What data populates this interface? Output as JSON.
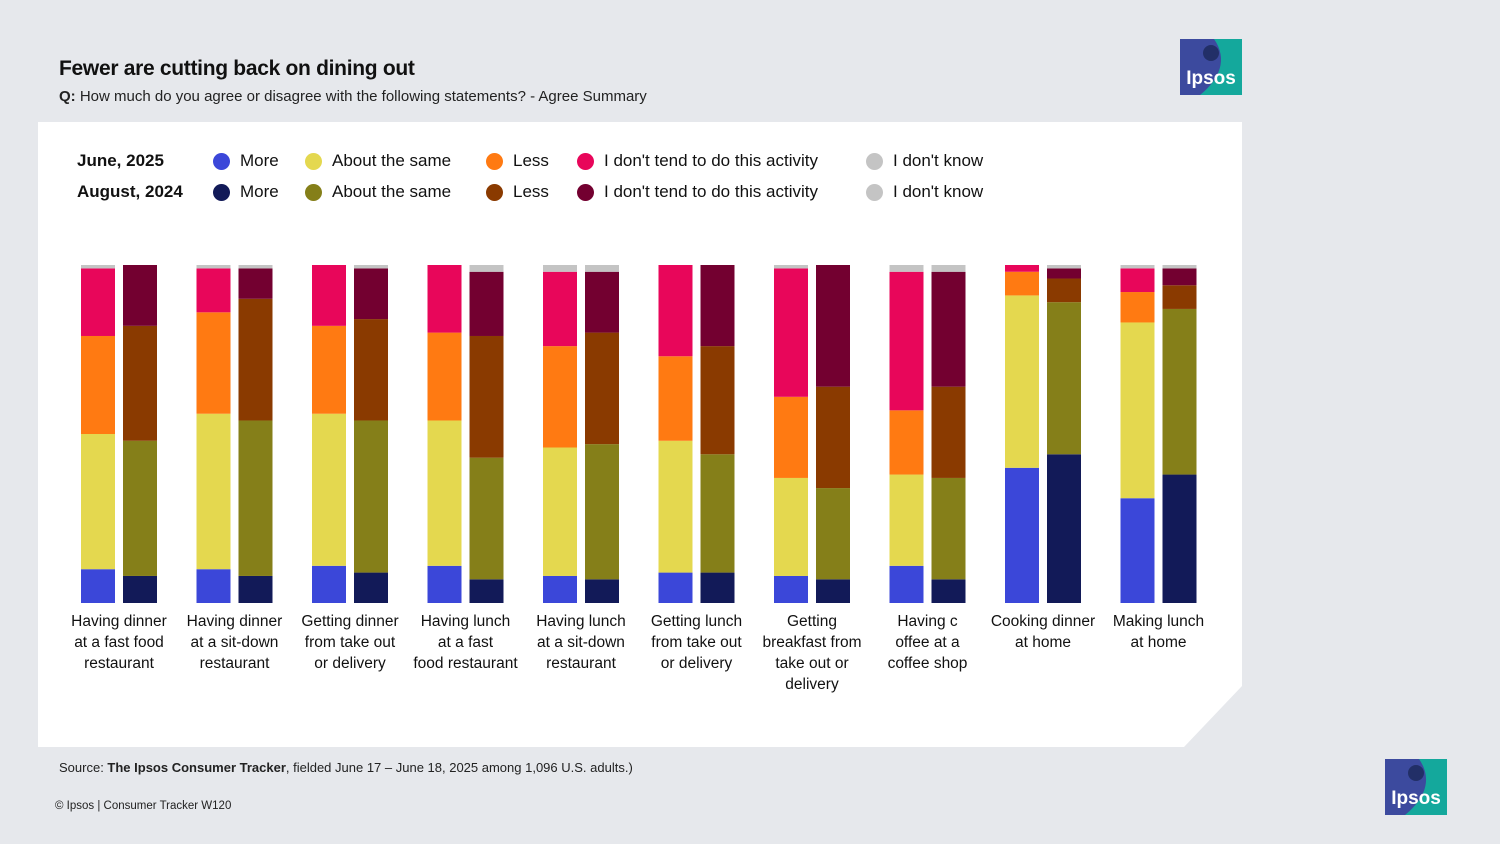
{
  "header": {
    "title": "Fewer are cutting back on dining out",
    "question_prefix": "Q:",
    "question_text": " How much do you agree or disagree with the following statements? - Agree Summary"
  },
  "logo": {
    "text": "Ipsos",
    "color_dark": "#3c4a9e",
    "color_teal": "#14a89c"
  },
  "legend": {
    "rows": [
      {
        "period": "June, 2025",
        "items": [
          {
            "label": "More",
            "color": "#3b47d9"
          },
          {
            "label": "About the same",
            "color": "#e4d84f"
          },
          {
            "label": "Less",
            "color": "#ff7a12"
          },
          {
            "label": "I don't tend to do this activity",
            "color": "#e8065a"
          },
          {
            "label": "I don't know",
            "color": "#c4c4c4"
          }
        ]
      },
      {
        "period": "August, 2024",
        "items": [
          {
            "label": "More",
            "color": "#121a58"
          },
          {
            "label": "About the same",
            "color": "#857f19"
          },
          {
            "label": "Less",
            "color": "#8a3a00"
          },
          {
            "label": "I don't tend to do this activity",
            "color": "#730030"
          },
          {
            "label": "I don't know",
            "color": "#c4c4c4"
          }
        ]
      }
    ]
  },
  "chart_data": {
    "type": "bar",
    "stacked": true,
    "normalized_to": 100,
    "categories": [
      [
        "Having dinner",
        "at a fast food",
        "restaurant"
      ],
      [
        "Having dinner",
        "at a sit-down",
        "restaurant"
      ],
      [
        "Getting dinner",
        "from take out",
        "or delivery"
      ],
      [
        "Having lunch",
        "at a fast",
        "food restaurant"
      ],
      [
        "Having lunch",
        "at a sit-down",
        "restaurant"
      ],
      [
        "Getting lunch",
        "from take out",
        "or delivery"
      ],
      [
        "Getting",
        "breakfast from",
        "take out or",
        "delivery"
      ],
      [
        "Having c",
        "offee at a",
        "coffee shop"
      ],
      [
        "Cooking dinner",
        "at home"
      ],
      [
        "Making lunch",
        "at home"
      ]
    ],
    "stack_order": [
      "More",
      "About the same",
      "Less",
      "I don't tend to do this activity",
      "I don't know"
    ],
    "series": [
      {
        "name": "June, 2025",
        "colors": [
          "#3b47d9",
          "#e4d84f",
          "#ff7a12",
          "#e8065a",
          "#c4c4c4"
        ],
        "values": [
          [
            10,
            40,
            29,
            20,
            1
          ],
          [
            10,
            46,
            30,
            13,
            1
          ],
          [
            11,
            45,
            26,
            18,
            0
          ],
          [
            11,
            43,
            26,
            20,
            0
          ],
          [
            8,
            38,
            30,
            22,
            2
          ],
          [
            9,
            39,
            25,
            27,
            0
          ],
          [
            8,
            29,
            24,
            38,
            1
          ],
          [
            11,
            27,
            19,
            41,
            2
          ],
          [
            40,
            51,
            7,
            2,
            0
          ],
          [
            31,
            52,
            9,
            7,
            1
          ]
        ]
      },
      {
        "name": "August, 2024",
        "colors": [
          "#121a58",
          "#857f19",
          "#8a3a00",
          "#730030",
          "#c4c4c4"
        ],
        "values": [
          [
            8,
            40,
            34,
            18,
            0
          ],
          [
            8,
            46,
            36,
            9,
            1
          ],
          [
            9,
            45,
            30,
            15,
            1
          ],
          [
            7,
            36,
            36,
            19,
            2
          ],
          [
            7,
            40,
            33,
            18,
            2
          ],
          [
            9,
            35,
            32,
            24,
            0
          ],
          [
            7,
            27,
            30,
            36,
            0
          ],
          [
            7,
            30,
            27,
            34,
            2
          ],
          [
            44,
            45,
            7,
            3,
            1
          ],
          [
            38,
            49,
            7,
            5,
            1
          ]
        ]
      }
    ],
    "ylim": [
      0,
      100
    ],
    "grid": false,
    "legend_position": "top-left"
  },
  "footer": {
    "source_prefix": "Source: ",
    "source_name": "The Ipsos Consumer Tracker",
    "source_suffix": ", fielded June 17 – June 18, 2025 among 1,096 U.S. adults.)",
    "copyright": "© Ipsos | Consumer Tracker W120"
  }
}
